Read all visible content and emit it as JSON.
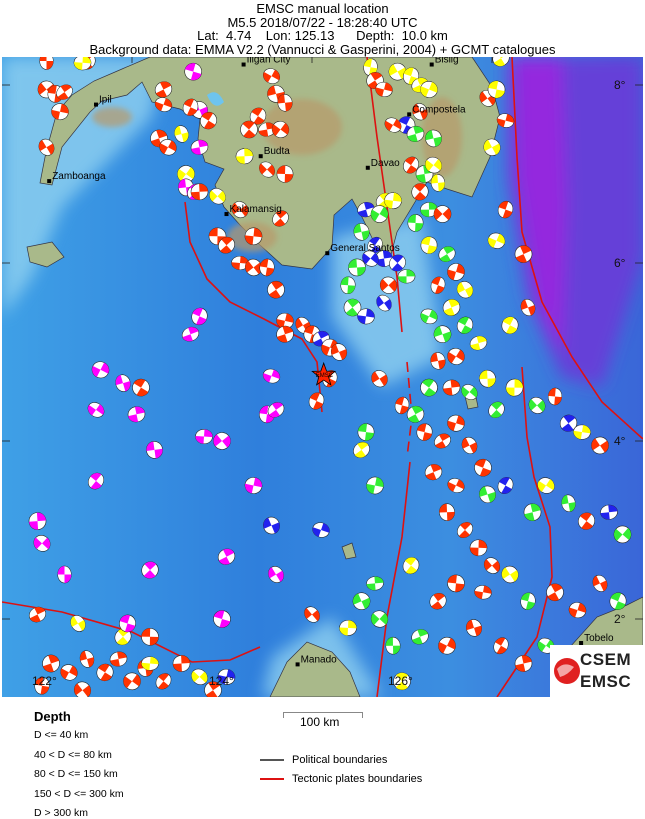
{
  "header": {
    "title": "EMSC manual location",
    "event": "M5.5  2018/07/22 - 18:28:40 UTC",
    "coords": "Lat:  4.74    Lon: 125.13      Depth:  10.0 km",
    "background": "Background data: EMMA V2.2 (Vannucci & Gasperini, 2004) + GCMT catalogues"
  },
  "epicenter": {
    "lon": 125.13,
    "lat": 4.74,
    "depth_km": 10.0,
    "magnitude": 5.5,
    "label": "EMSC"
  },
  "map": {
    "lon_labels": [
      "122°",
      "124°",
      "126°"
    ],
    "lat_labels": [
      "8°",
      "6°",
      "4°",
      "2°"
    ],
    "cities": [
      {
        "name": "Iligan City",
        "lon": 124.24,
        "lat": 8.23
      },
      {
        "name": "Bislig",
        "lon": 126.33,
        "lat": 8.23
      },
      {
        "name": "Ipil",
        "lon": 122.6,
        "lat": 7.78
      },
      {
        "name": "Compostela",
        "lon": 126.08,
        "lat": 7.67
      },
      {
        "name": "Budta",
        "lon": 124.43,
        "lat": 7.2
      },
      {
        "name": "Davao",
        "lon": 125.62,
        "lat": 7.07
      },
      {
        "name": "Zamboanga",
        "lon": 122.08,
        "lat": 6.92
      },
      {
        "name": "Kalamansig",
        "lon": 124.05,
        "lat": 6.55
      },
      {
        "name": "General Santos",
        "lon": 125.17,
        "lat": 6.11
      },
      {
        "name": "Manado",
        "lon": 124.84,
        "lat": 1.49
      },
      {
        "name": "Tobelo",
        "lon": 127.99,
        "lat": 1.73
      }
    ],
    "depth_colors": {
      "r": "#ff3300",
      "y": "#ffff00",
      "g": "#33ee33",
      "b": "#2222ee",
      "m": "#ff00ff"
    },
    "events": [
      [
        122.05,
        8.27,
        "r"
      ],
      [
        122.5,
        8.27,
        "r"
      ],
      [
        122.45,
        8.25,
        "y"
      ],
      [
        122.05,
        7.95,
        "r"
      ],
      [
        122.15,
        7.9,
        "r"
      ],
      [
        122.25,
        7.92,
        "r"
      ],
      [
        122.2,
        7.7,
        "r"
      ],
      [
        122.05,
        7.3,
        "r"
      ],
      [
        123.68,
        8.15,
        "m"
      ],
      [
        123.35,
        7.95,
        "r"
      ],
      [
        123.35,
        7.78,
        "r"
      ],
      [
        123.75,
        7.72,
        "m"
      ],
      [
        123.65,
        7.75,
        "r"
      ],
      [
        123.3,
        7.4,
        "r"
      ],
      [
        123.4,
        7.3,
        "r"
      ],
      [
        123.55,
        7.45,
        "y"
      ],
      [
        123.85,
        7.6,
        "r"
      ],
      [
        123.75,
        7.3,
        "m"
      ],
      [
        123.6,
        7.0,
        "y"
      ],
      [
        123.6,
        6.85,
        "m"
      ],
      [
        123.7,
        6.8,
        "m"
      ],
      [
        123.75,
        6.8,
        "r"
      ],
      [
        123.95,
        6.75,
        "y"
      ],
      [
        123.95,
        6.3,
        "r"
      ],
      [
        124.05,
        6.2,
        "r"
      ],
      [
        124.2,
        6.0,
        "r"
      ],
      [
        124.35,
        5.95,
        "r"
      ],
      [
        124.5,
        5.95,
        "r"
      ],
      [
        124.6,
        5.7,
        "r"
      ],
      [
        124.7,
        5.35,
        "r"
      ],
      [
        124.9,
        5.3,
        "r"
      ],
      [
        125.0,
        5.2,
        "r"
      ],
      [
        125.1,
        5.15,
        "b"
      ],
      [
        125.2,
        5.05,
        "r"
      ],
      [
        125.3,
        5.0,
        "r"
      ],
      [
        125.2,
        4.7,
        "r"
      ],
      [
        124.7,
        5.2,
        "r"
      ],
      [
        124.55,
        8.1,
        "r"
      ],
      [
        124.6,
        7.9,
        "r"
      ],
      [
        124.4,
        7.65,
        "r"
      ],
      [
        124.5,
        7.5,
        "r"
      ],
      [
        124.65,
        7.5,
        "r"
      ],
      [
        124.7,
        7.8,
        "r"
      ],
      [
        124.3,
        7.5,
        "r"
      ],
      [
        124.25,
        7.2,
        "y"
      ],
      [
        124.5,
        7.05,
        "r"
      ],
      [
        124.7,
        7.0,
        "r"
      ],
      [
        124.65,
        6.5,
        "r"
      ],
      [
        124.35,
        6.3,
        "r"
      ],
      [
        124.2,
        6.6,
        "r"
      ],
      [
        125.65,
        8.2,
        "y"
      ],
      [
        125.7,
        8.05,
        "r"
      ],
      [
        125.8,
        7.95,
        "r"
      ],
      [
        125.95,
        8.15,
        "y"
      ],
      [
        126.1,
        8.1,
        "y"
      ],
      [
        126.2,
        8.0,
        "y"
      ],
      [
        126.3,
        7.95,
        "y"
      ],
      [
        126.2,
        7.7,
        "r"
      ],
      [
        126.05,
        7.55,
        "b"
      ],
      [
        126.15,
        7.45,
        "g"
      ],
      [
        125.9,
        7.55,
        "r"
      ],
      [
        126.35,
        7.4,
        "g"
      ],
      [
        126.1,
        7.1,
        "r"
      ],
      [
        126.25,
        7.0,
        "g"
      ],
      [
        126.35,
        7.1,
        "y"
      ],
      [
        126.4,
        6.9,
        "y"
      ],
      [
        126.2,
        6.8,
        "r"
      ],
      [
        126.3,
        6.6,
        "g"
      ],
      [
        126.45,
        6.55,
        "r"
      ],
      [
        126.15,
        6.45,
        "g"
      ],
      [
        125.8,
        6.7,
        "y"
      ],
      [
        125.9,
        6.7,
        "y"
      ],
      [
        126.95,
        7.85,
        "r"
      ],
      [
        127.05,
        7.95,
        "y"
      ],
      [
        127.1,
        8.3,
        "y"
      ],
      [
        127.15,
        7.6,
        "r"
      ],
      [
        127.0,
        7.3,
        "y"
      ],
      [
        127.15,
        6.6,
        "r"
      ],
      [
        127.35,
        6.1,
        "r"
      ],
      [
        127.05,
        6.25,
        "y"
      ],
      [
        127.4,
        5.5,
        "r"
      ],
      [
        127.2,
        5.3,
        "y"
      ],
      [
        125.6,
        6.6,
        "b"
      ],
      [
        125.75,
        6.55,
        "g"
      ],
      [
        125.55,
        6.35,
        "g"
      ],
      [
        125.7,
        6.2,
        "b"
      ],
      [
        125.8,
        6.05,
        "b"
      ],
      [
        125.65,
        6.05,
        "b"
      ],
      [
        125.5,
        5.95,
        "g"
      ],
      [
        125.95,
        6.0,
        "b"
      ],
      [
        126.05,
        5.85,
        "g"
      ],
      [
        125.85,
        5.75,
        "r"
      ],
      [
        125.4,
        5.75,
        "g"
      ],
      [
        125.45,
        5.5,
        "g"
      ],
      [
        125.6,
        5.4,
        "b"
      ],
      [
        125.8,
        5.55,
        "b"
      ],
      [
        126.3,
        6.2,
        "y"
      ],
      [
        126.5,
        6.1,
        "g"
      ],
      [
        126.6,
        5.9,
        "r"
      ],
      [
        126.7,
        5.7,
        "y"
      ],
      [
        126.4,
        5.75,
        "r"
      ],
      [
        126.55,
        5.5,
        "y"
      ],
      [
        126.3,
        5.4,
        "g"
      ],
      [
        126.45,
        5.2,
        "g"
      ],
      [
        126.7,
        5.3,
        "g"
      ],
      [
        126.85,
        5.1,
        "y"
      ],
      [
        126.6,
        4.95,
        "r"
      ],
      [
        126.4,
        4.9,
        "r"
      ],
      [
        126.3,
        4.6,
        "g"
      ],
      [
        126.55,
        4.6,
        "r"
      ],
      [
        126.75,
        4.55,
        "g"
      ],
      [
        126.95,
        4.7,
        "y"
      ],
      [
        127.05,
        4.35,
        "g"
      ],
      [
        127.25,
        4.6,
        "y"
      ],
      [
        127.5,
        4.4,
        "g"
      ],
      [
        127.7,
        4.5,
        "r"
      ],
      [
        127.85,
        4.2,
        "b"
      ],
      [
        128.0,
        4.1,
        "y"
      ],
      [
        128.2,
        3.95,
        "r"
      ],
      [
        126.25,
        4.1,
        "r"
      ],
      [
        126.45,
        4.0,
        "r"
      ],
      [
        126.6,
        4.2,
        "r"
      ],
      [
        126.75,
        3.95,
        "r"
      ],
      [
        126.9,
        3.7,
        "r"
      ],
      [
        126.35,
        3.65,
        "r"
      ],
      [
        126.6,
        3.5,
        "r"
      ],
      [
        126.95,
        3.4,
        "g"
      ],
      [
        127.15,
        3.5,
        "b"
      ],
      [
        127.45,
        3.2,
        "g"
      ],
      [
        127.6,
        3.5,
        "y"
      ],
      [
        127.85,
        3.3,
        "g"
      ],
      [
        128.05,
        3.1,
        "r"
      ],
      [
        128.3,
        3.2,
        "b"
      ],
      [
        128.45,
        2.95,
        "g"
      ],
      [
        126.5,
        3.2,
        "r"
      ],
      [
        126.7,
        3.0,
        "r"
      ],
      [
        126.85,
        2.8,
        "r"
      ],
      [
        127.0,
        2.6,
        "r"
      ],
      [
        126.6,
        2.4,
        "r"
      ],
      [
        126.4,
        2.2,
        "r"
      ],
      [
        126.9,
        2.3,
        "r"
      ],
      [
        127.2,
        2.5,
        "y"
      ],
      [
        127.4,
        2.2,
        "g"
      ],
      [
        127.7,
        2.3,
        "r"
      ],
      [
        127.95,
        2.1,
        "r"
      ],
      [
        128.2,
        2.4,
        "r"
      ],
      [
        128.4,
        2.2,
        "g"
      ],
      [
        126.2,
        1.8,
        "g"
      ],
      [
        126.5,
        1.7,
        "r"
      ],
      [
        126.8,
        1.9,
        "r"
      ],
      [
        127.1,
        1.7,
        "r"
      ],
      [
        127.35,
        1.5,
        "r"
      ],
      [
        127.6,
        1.7,
        "g"
      ],
      [
        127.9,
        1.5,
        "b"
      ],
      [
        126.1,
        2.6,
        "y"
      ],
      [
        125.7,
        2.4,
        "g"
      ],
      [
        125.75,
        2.0,
        "g"
      ],
      [
        125.9,
        1.7,
        "g"
      ],
      [
        126.0,
        1.3,
        "y"
      ],
      [
        125.4,
        1.9,
        "y"
      ],
      [
        125.0,
        2.05,
        "r"
      ],
      [
        125.6,
        4.1,
        "g"
      ],
      [
        125.55,
        3.9,
        "y"
      ],
      [
        125.7,
        3.5,
        "g"
      ],
      [
        125.75,
        4.7,
        "r"
      ],
      [
        126.0,
        4.4,
        "r"
      ],
      [
        126.15,
        4.3,
        "g"
      ],
      [
        125.1,
        3.0,
        "b"
      ],
      [
        125.55,
        2.2,
        "g"
      ],
      [
        123.75,
        5.4,
        "m"
      ],
      [
        123.65,
        5.2,
        "m"
      ],
      [
        122.65,
        4.8,
        "m"
      ],
      [
        122.9,
        4.65,
        "m"
      ],
      [
        123.1,
        4.6,
        "r"
      ],
      [
        123.05,
        4.3,
        "m"
      ],
      [
        122.6,
        4.35,
        "m"
      ],
      [
        123.25,
        3.9,
        "m"
      ],
      [
        122.6,
        3.55,
        "m"
      ],
      [
        121.95,
        3.1,
        "m"
      ],
      [
        122.0,
        2.85,
        "m"
      ],
      [
        122.25,
        2.5,
        "m"
      ],
      [
        123.2,
        2.55,
        "m"
      ],
      [
        123.8,
        4.05,
        "m"
      ],
      [
        124.0,
        4.0,
        "m"
      ],
      [
        124.5,
        4.3,
        "m"
      ],
      [
        124.6,
        4.35,
        "m"
      ],
      [
        124.35,
        3.5,
        "m"
      ],
      [
        124.6,
        2.5,
        "m"
      ],
      [
        124.0,
        2.0,
        "m"
      ],
      [
        124.05,
        2.7,
        "m"
      ],
      [
        124.55,
        4.73,
        "m"
      ],
      [
        124.55,
        3.05,
        "b"
      ],
      [
        125.05,
        4.45,
        "r"
      ],
      [
        122.1,
        1.5,
        "r"
      ],
      [
        122.3,
        1.4,
        "r"
      ],
      [
        122.5,
        1.55,
        "r"
      ],
      [
        122.7,
        1.4,
        "r"
      ],
      [
        122.85,
        1.55,
        "r"
      ],
      [
        123.0,
        1.3,
        "r"
      ],
      [
        123.15,
        1.45,
        "r"
      ],
      [
        123.35,
        1.3,
        "r"
      ],
      [
        123.55,
        1.5,
        "r"
      ],
      [
        123.75,
        1.35,
        "y"
      ],
      [
        123.2,
        1.8,
        "r"
      ],
      [
        122.9,
        1.8,
        "y"
      ],
      [
        123.2,
        1.5,
        "y"
      ],
      [
        122.45,
        1.2,
        "r"
      ],
      [
        122.0,
        1.25,
        "r"
      ],
      [
        123.9,
        1.2,
        "r"
      ],
      [
        124.05,
        1.35,
        "b"
      ],
      [
        122.4,
        1.95,
        "y"
      ],
      [
        122.95,
        1.95,
        "m"
      ],
      [
        121.95,
        2.05,
        "r"
      ]
    ]
  },
  "legend": {
    "depth_title": "Depth",
    "depth_classes": [
      "D <= 40 km",
      "40 < D <= 80 km",
      "80 < D <= 150 km",
      "150 < D <= 300 km",
      "D > 300 km"
    ],
    "scale": "100 km",
    "political": "Political boundaries",
    "tectonic": "Tectonic plates boundaries",
    "political_color": "#555555",
    "tectonic_color": "#dd1111"
  },
  "logo": {
    "top": "CSEM",
    "bottom": "EMSC"
  }
}
